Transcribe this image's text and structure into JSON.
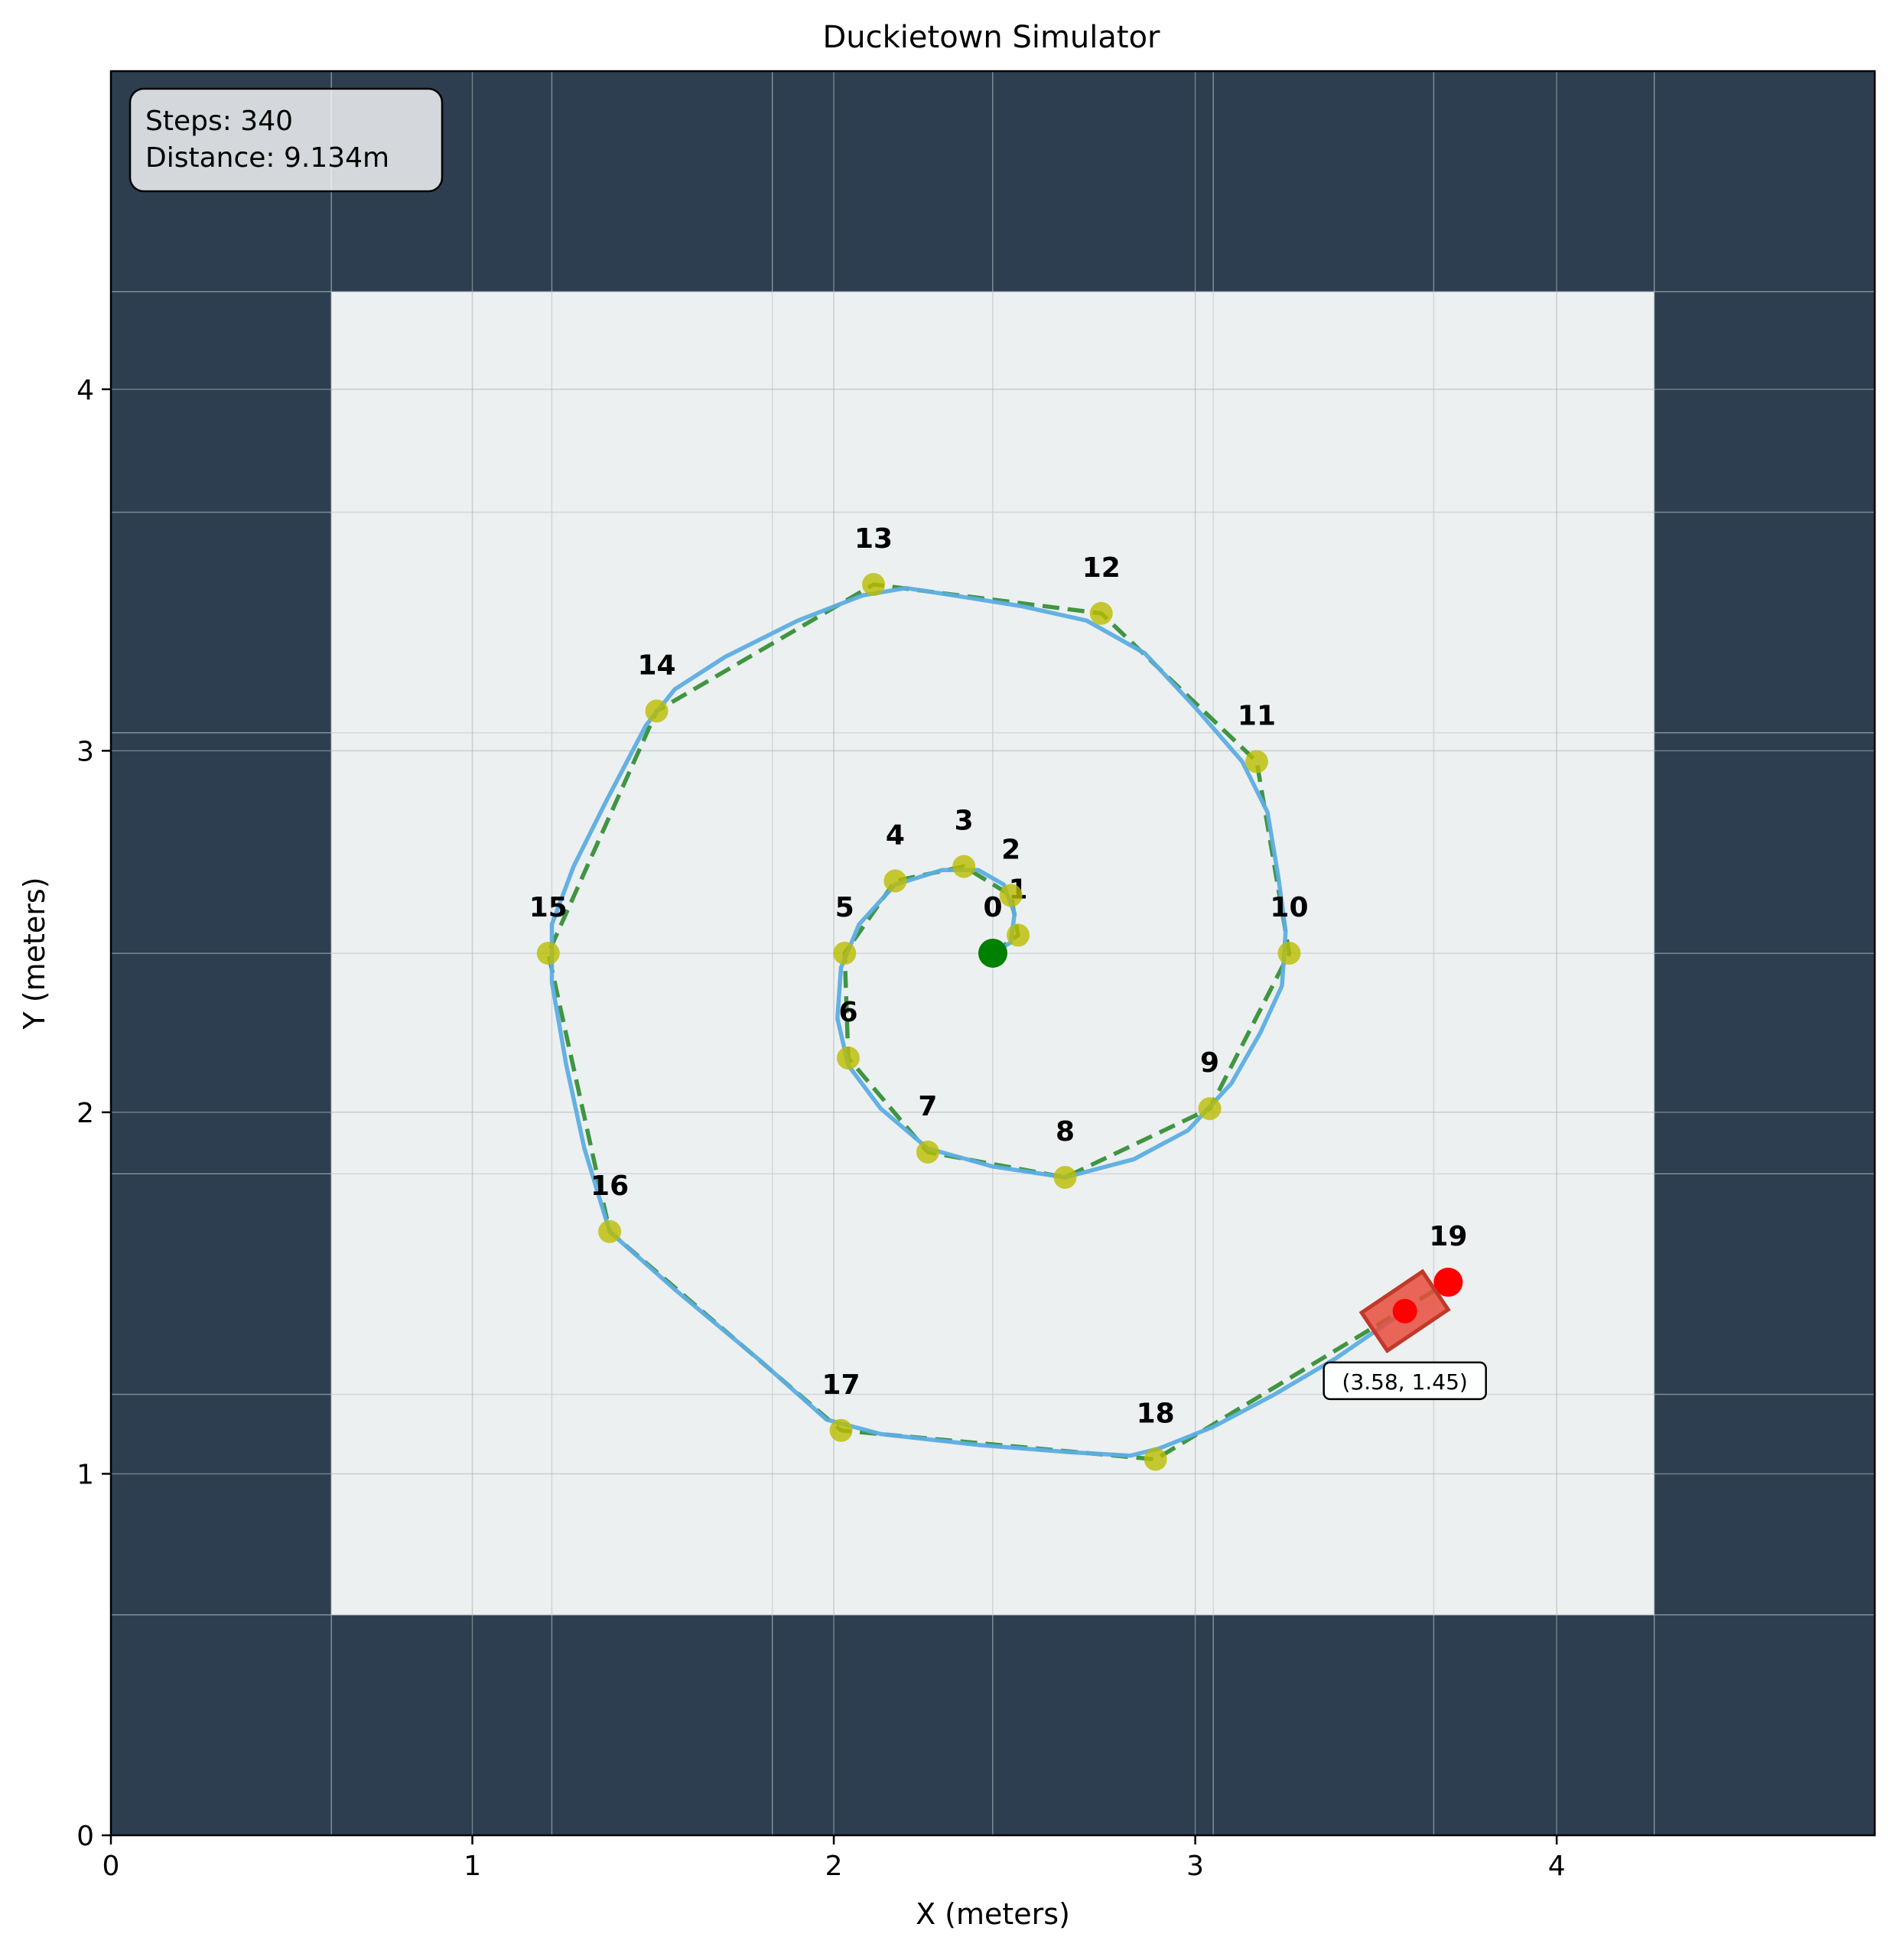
{
  "chart_data": {
    "type": "scatter",
    "title": "Duckietown Simulator",
    "xlabel": "X (meters)",
    "ylabel": "Y (meters)",
    "xlim": [
      0,
      4.88
    ],
    "ylim": [
      0,
      4.88
    ],
    "xticks": [
      0,
      1,
      2,
      3,
      4
    ],
    "yticks": [
      0,
      1,
      2,
      3,
      4
    ],
    "grid": true,
    "tile_size": 0.61,
    "tiles": {
      "cols": 8,
      "rows": 8,
      "road_region": {
        "x0": 0.61,
        "x1": 4.27,
        "y0": 0.61,
        "y1": 4.27
      },
      "wall_color": "#2c3e50",
      "road_color": "#ecf0f1"
    },
    "info_box": {
      "steps_text": "Steps: 340",
      "distance_text": "Distance: 9.134m"
    },
    "waypoints": {
      "color": "#bcbd00",
      "points": [
        {
          "label": "0",
          "x": 2.44,
          "y": 2.44
        },
        {
          "label": "1",
          "x": 2.51,
          "y": 2.49
        },
        {
          "label": "2",
          "x": 2.49,
          "y": 2.6
        },
        {
          "label": "3",
          "x": 2.36,
          "y": 2.68
        },
        {
          "label": "4",
          "x": 2.17,
          "y": 2.64
        },
        {
          "label": "5",
          "x": 2.03,
          "y": 2.44
        },
        {
          "label": "6",
          "x": 2.04,
          "y": 2.15
        },
        {
          "label": "7",
          "x": 2.26,
          "y": 1.89
        },
        {
          "label": "8",
          "x": 2.64,
          "y": 1.82
        },
        {
          "label": "9",
          "x": 3.04,
          "y": 2.01
        },
        {
          "label": "10",
          "x": 3.26,
          "y": 2.44
        },
        {
          "label": "11",
          "x": 3.17,
          "y": 2.97
        },
        {
          "label": "12",
          "x": 2.74,
          "y": 3.38
        },
        {
          "label": "13",
          "x": 2.11,
          "y": 3.46
        },
        {
          "label": "14",
          "x": 1.51,
          "y": 3.11
        },
        {
          "label": "15",
          "x": 1.21,
          "y": 2.44
        },
        {
          "label": "16",
          "x": 1.38,
          "y": 1.67
        },
        {
          "label": "17",
          "x": 2.02,
          "y": 1.12
        },
        {
          "label": "18",
          "x": 2.89,
          "y": 1.04
        },
        {
          "label": "19",
          "x": 3.7,
          "y": 1.53
        }
      ]
    },
    "start": {
      "x": 2.44,
      "y": 2.44,
      "color": "#008000"
    },
    "goal": {
      "x": 3.7,
      "y": 1.53,
      "color": "#ff0000"
    },
    "planned_path": {
      "color": "#2e8b2e",
      "style": "dashed",
      "points": [
        [
          2.44,
          2.44
        ],
        [
          2.51,
          2.49
        ],
        [
          2.49,
          2.6
        ],
        [
          2.36,
          2.68
        ],
        [
          2.17,
          2.64
        ],
        [
          2.03,
          2.44
        ],
        [
          2.04,
          2.15
        ],
        [
          2.26,
          1.89
        ],
        [
          2.64,
          1.82
        ],
        [
          3.04,
          2.01
        ],
        [
          3.26,
          2.44
        ],
        [
          3.17,
          2.97
        ],
        [
          2.74,
          3.38
        ],
        [
          2.11,
          3.46
        ],
        [
          1.51,
          3.11
        ],
        [
          1.21,
          2.44
        ],
        [
          1.38,
          1.67
        ],
        [
          2.02,
          1.12
        ],
        [
          2.89,
          1.04
        ],
        [
          3.7,
          1.53
        ]
      ]
    },
    "actual_path": {
      "color": "#5dade2",
      "style": "solid",
      "points": [
        [
          2.44,
          2.44
        ],
        [
          2.49,
          2.47
        ],
        [
          2.5,
          2.55
        ],
        [
          2.47,
          2.63
        ],
        [
          2.4,
          2.67
        ],
        [
          2.3,
          2.67
        ],
        [
          2.17,
          2.63
        ],
        [
          2.07,
          2.52
        ],
        [
          2.02,
          2.4
        ],
        [
          2.01,
          2.26
        ],
        [
          2.04,
          2.13
        ],
        [
          2.13,
          2.01
        ],
        [
          2.26,
          1.9
        ],
        [
          2.44,
          1.85
        ],
        [
          2.64,
          1.82
        ],
        [
          2.83,
          1.87
        ],
        [
          2.98,
          1.95
        ],
        [
          3.1,
          2.08
        ],
        [
          3.18,
          2.22
        ],
        [
          3.24,
          2.35
        ],
        [
          3.25,
          2.5
        ],
        [
          3.23,
          2.65
        ],
        [
          3.2,
          2.83
        ],
        [
          3.13,
          2.97
        ],
        [
          3.0,
          3.12
        ],
        [
          2.86,
          3.27
        ],
        [
          2.7,
          3.36
        ],
        [
          2.52,
          3.4
        ],
        [
          2.33,
          3.43
        ],
        [
          2.2,
          3.45
        ],
        [
          2.08,
          3.43
        ],
        [
          1.9,
          3.36
        ],
        [
          1.7,
          3.26
        ],
        [
          1.56,
          3.17
        ],
        [
          1.48,
          3.07
        ],
        [
          1.37,
          2.86
        ],
        [
          1.28,
          2.68
        ],
        [
          1.22,
          2.52
        ],
        [
          1.22,
          2.36
        ],
        [
          1.26,
          2.13
        ],
        [
          1.31,
          1.9
        ],
        [
          1.38,
          1.67
        ],
        [
          1.56,
          1.51
        ],
        [
          1.8,
          1.31
        ],
        [
          1.98,
          1.15
        ],
        [
          2.13,
          1.11
        ],
        [
          2.4,
          1.08
        ],
        [
          2.65,
          1.06
        ],
        [
          2.82,
          1.05
        ],
        [
          2.9,
          1.07
        ],
        [
          3.05,
          1.13
        ],
        [
          3.22,
          1.22
        ],
        [
          3.39,
          1.32
        ],
        [
          3.55,
          1.43
        ],
        [
          3.58,
          1.45
        ]
      ]
    },
    "robot": {
      "x": 3.58,
      "y": 1.45,
      "heading_deg": 34,
      "color": "#e74c3c",
      "dot_color": "#ff0000",
      "position_label": "(3.58, 1.45)"
    }
  }
}
